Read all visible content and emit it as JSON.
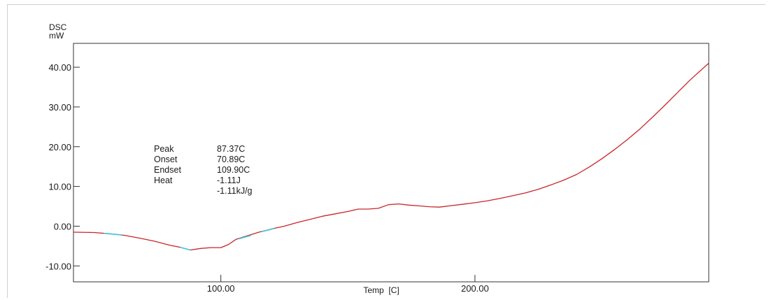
{
  "chart_data": {
    "type": "line",
    "ylabel_line1": "DSC",
    "ylabel_line2": "mW",
    "xlabel": "Temp  [C]",
    "xlim": [
      42,
      292
    ],
    "ylim": [
      -14,
      46
    ],
    "x_ticks": [
      100,
      200
    ],
    "x_tick_labels": [
      "100.00",
      "200.00"
    ],
    "y_ticks": [
      -10,
      0,
      10,
      20,
      30,
      40
    ],
    "y_tick_labels": [
      "-10.00",
      "0.00",
      "10.00",
      "20.00",
      "30.00",
      "40.00"
    ],
    "grid": false,
    "series": [
      {
        "color": "#c8262a",
        "x": [
          42,
          50,
          56,
          62,
          68,
          74,
          80,
          84,
          88,
          92,
          96,
          100,
          103,
          106,
          110,
          115,
          120,
          125,
          130,
          135,
          140,
          145,
          150,
          154,
          158,
          162,
          166,
          170,
          174,
          178,
          182,
          186,
          190,
          195,
          200,
          205,
          210,
          215,
          220,
          225,
          230,
          235,
          240,
          245,
          250,
          255,
          260,
          265,
          270,
          275,
          280,
          285,
          292
        ],
        "y": [
          -1.5,
          -1.6,
          -1.9,
          -2.3,
          -3.0,
          -3.8,
          -4.8,
          -5.3,
          -6.0,
          -5.6,
          -5.4,
          -5.4,
          -4.6,
          -3.3,
          -2.5,
          -1.5,
          -0.7,
          0.0,
          0.9,
          1.7,
          2.5,
          3.1,
          3.7,
          4.3,
          4.3,
          4.5,
          5.4,
          5.6,
          5.3,
          5.1,
          4.9,
          4.8,
          5.1,
          5.5,
          5.9,
          6.4,
          7.0,
          7.7,
          8.4,
          9.3,
          10.4,
          11.6,
          13.0,
          14.9,
          17.0,
          19.3,
          21.8,
          24.5,
          27.5,
          30.6,
          33.8,
          37.0,
          41.0
        ]
      }
    ],
    "baseline_segments": [
      {
        "color": "#3ec8e0",
        "x": [
          54,
          61
        ],
        "y": [
          -1.8,
          -2.2
        ]
      },
      {
        "color": "#3ec8e0",
        "x": [
          84,
          88
        ],
        "y": [
          -5.3,
          -6.0
        ]
      },
      {
        "color": "#3ec8e0",
        "x": [
          107,
          112
        ],
        "y": [
          -3.2,
          -2.3
        ]
      },
      {
        "color": "#3ec8e0",
        "x": [
          116,
          121
        ],
        "y": [
          -1.4,
          -0.6
        ]
      }
    ],
    "annotation": {
      "rows": [
        {
          "label": "Peak",
          "value": "87.37C"
        },
        {
          "label": "Onset",
          "value": "70.89C"
        },
        {
          "label": "Endset",
          "value": "109.90C"
        },
        {
          "label": "Heat",
          "value": "-1.11J"
        },
        {
          "label": "",
          "value": "-1.11kJ/g"
        }
      ]
    }
  }
}
